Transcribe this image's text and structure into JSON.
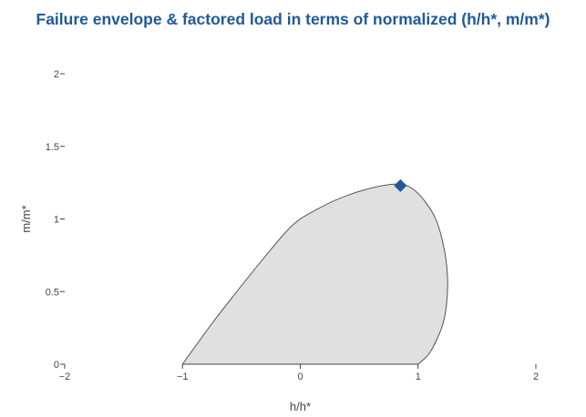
{
  "chart_data": {
    "type": "area",
    "title": "Failure envelope & factored load in terms of normalized (h/h*, m/m*)",
    "xlabel": "h/h*",
    "ylabel": "m/m*",
    "xlim": [
      -2,
      2
    ],
    "ylim": [
      0,
      2
    ],
    "xticks": [
      "−2",
      "−1",
      "0",
      "1",
      "2"
    ],
    "yticks": [
      "0",
      "0.5",
      "1",
      "1.5",
      "2"
    ],
    "xtick_values": [
      -2,
      -1,
      0,
      1,
      2
    ],
    "ytick_values": [
      0,
      0.5,
      1,
      1.5,
      2
    ],
    "grid": false,
    "envelope": {
      "x": [
        -1.0,
        -0.75,
        -0.5,
        -0.25,
        -0.1,
        0.0,
        0.15,
        0.3,
        0.5,
        0.7,
        0.85,
        0.95,
        1.05,
        1.15,
        1.22,
        1.25,
        1.24,
        1.2,
        1.1,
        1.0
      ],
      "y": [
        0.0,
        0.28,
        0.54,
        0.79,
        0.93,
        1.0,
        1.07,
        1.13,
        1.19,
        1.23,
        1.24,
        1.21,
        1.13,
        1.0,
        0.8,
        0.6,
        0.4,
        0.25,
        0.08,
        0.0
      ]
    },
    "factored_load": {
      "x": 0.85,
      "y": 1.23
    },
    "colors": {
      "title": "#1f5a99",
      "envelope_fill": "#e0e0e0",
      "envelope_line": "#444444",
      "marker": "#1f5a99"
    }
  }
}
